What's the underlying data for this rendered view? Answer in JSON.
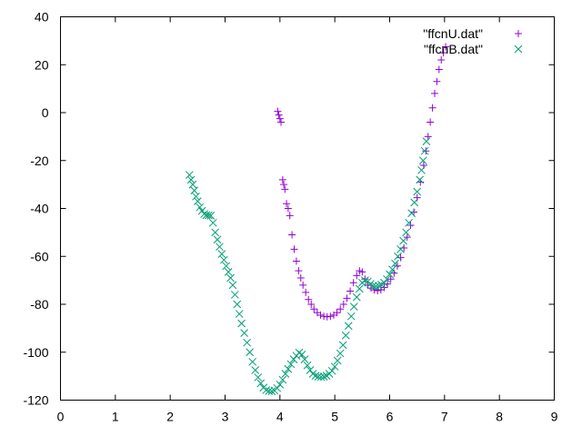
{
  "chart_data": {
    "type": "scatter",
    "title": "",
    "xlabel": "",
    "ylabel": "",
    "xlim": [
      0,
      9
    ],
    "ylim": [
      -120,
      40
    ],
    "xticks": [
      "0",
      "1",
      "2",
      "3",
      "4",
      "5",
      "6",
      "7",
      "8",
      "9"
    ],
    "yticks": [
      "40",
      "20",
      "0",
      "-20",
      "-40",
      "-60",
      "-80",
      "-100",
      "-120"
    ],
    "grid": false,
    "legend_position": "top-right",
    "series": [
      {
        "name": "\"ffcnU.dat\"",
        "marker": "plus",
        "color": "#9400d3",
        "points": [
          [
            3.96,
            0.5
          ],
          [
            3.98,
            -1
          ],
          [
            4.0,
            -2.5
          ],
          [
            4.02,
            -4
          ],
          [
            4.05,
            -28
          ],
          [
            4.07,
            -30
          ],
          [
            4.09,
            -32
          ],
          [
            4.12,
            -38
          ],
          [
            4.15,
            -40
          ],
          [
            4.18,
            -43
          ],
          [
            4.22,
            -51
          ],
          [
            4.26,
            -57
          ],
          [
            4.3,
            -62
          ],
          [
            4.34,
            -66
          ],
          [
            4.38,
            -69
          ],
          [
            4.42,
            -72
          ],
          [
            4.47,
            -75
          ],
          [
            4.52,
            -78
          ],
          [
            4.57,
            -80
          ],
          [
            4.62,
            -82
          ],
          [
            4.68,
            -83.5
          ],
          [
            4.74,
            -84.5
          ],
          [
            4.8,
            -85
          ],
          [
            4.86,
            -85.2
          ],
          [
            4.92,
            -85
          ],
          [
            4.98,
            -84.5
          ],
          [
            5.04,
            -83.5
          ],
          [
            5.1,
            -82
          ],
          [
            5.16,
            -80
          ],
          [
            5.22,
            -77.5
          ],
          [
            5.28,
            -74.5
          ],
          [
            5.34,
            -71
          ],
          [
            5.4,
            -68
          ],
          [
            5.45,
            -66
          ],
          [
            5.5,
            -66.5
          ],
          [
            5.55,
            -69.5
          ],
          [
            5.6,
            -72
          ],
          [
            5.66,
            -73.2
          ],
          [
            5.72,
            -74
          ],
          [
            5.78,
            -74.3
          ],
          [
            5.84,
            -74
          ],
          [
            5.9,
            -73
          ],
          [
            5.96,
            -71.5
          ],
          [
            6.02,
            -69.5
          ],
          [
            6.08,
            -67
          ],
          [
            6.14,
            -64
          ],
          [
            6.2,
            -60.5
          ],
          [
            6.26,
            -56.5
          ],
          [
            6.32,
            -52
          ],
          [
            6.38,
            -47
          ],
          [
            6.44,
            -41.5
          ],
          [
            6.5,
            -35.5
          ],
          [
            6.56,
            -29
          ],
          [
            6.62,
            -22
          ],
          [
            6.66,
            -16
          ],
          [
            6.7,
            -10
          ],
          [
            6.74,
            -4
          ],
          [
            6.78,
            2
          ],
          [
            6.82,
            8
          ],
          [
            6.86,
            13
          ],
          [
            6.9,
            18
          ],
          [
            6.94,
            22
          ],
          [
            6.98,
            25
          ],
          [
            7.02,
            27.5
          ]
        ]
      },
      {
        "name": "\"ffcnB.dat\"",
        "marker": "cross",
        "color": "#009e73",
        "points": [
          [
            2.35,
            -26
          ],
          [
            2.38,
            -28
          ],
          [
            2.41,
            -30
          ],
          [
            2.44,
            -32.5
          ],
          [
            2.47,
            -35
          ],
          [
            2.5,
            -37
          ],
          [
            2.54,
            -39.5
          ],
          [
            2.58,
            -41
          ],
          [
            2.62,
            -42.3
          ],
          [
            2.66,
            -42.8
          ],
          [
            2.7,
            -42.9
          ],
          [
            2.74,
            -43
          ],
          [
            2.78,
            -46
          ],
          [
            2.82,
            -50
          ],
          [
            2.86,
            -53
          ],
          [
            2.9,
            -56
          ],
          [
            2.94,
            -59
          ],
          [
            2.98,
            -61.5
          ],
          [
            3.02,
            -64
          ],
          [
            3.06,
            -66.5
          ],
          [
            3.1,
            -69
          ],
          [
            3.14,
            -72
          ],
          [
            3.18,
            -76
          ],
          [
            3.22,
            -80
          ],
          [
            3.26,
            -84
          ],
          [
            3.3,
            -88
          ],
          [
            3.35,
            -92
          ],
          [
            3.4,
            -96
          ],
          [
            3.45,
            -100
          ],
          [
            3.5,
            -104
          ],
          [
            3.55,
            -107.5
          ],
          [
            3.6,
            -110.5
          ],
          [
            3.65,
            -113
          ],
          [
            3.7,
            -114.8
          ],
          [
            3.75,
            -115.8
          ],
          [
            3.8,
            -116.2
          ],
          [
            3.85,
            -116.3
          ],
          [
            3.9,
            -116
          ],
          [
            3.95,
            -115
          ],
          [
            4.0,
            -113.5
          ],
          [
            4.05,
            -111.5
          ],
          [
            4.1,
            -109
          ],
          [
            4.15,
            -107
          ],
          [
            4.2,
            -105
          ],
          [
            4.25,
            -103
          ],
          [
            4.3,
            -101.5
          ],
          [
            4.35,
            -100.2
          ],
          [
            4.4,
            -101
          ],
          [
            4.45,
            -103
          ],
          [
            4.5,
            -105.5
          ],
          [
            4.55,
            -107.5
          ],
          [
            4.6,
            -109
          ],
          [
            4.65,
            -109.8
          ],
          [
            4.7,
            -110.2
          ],
          [
            4.75,
            -110.3
          ],
          [
            4.8,
            -110.2
          ],
          [
            4.85,
            -109.8
          ],
          [
            4.9,
            -109
          ],
          [
            4.95,
            -107.8
          ],
          [
            5.0,
            -106
          ],
          [
            5.05,
            -103.5
          ],
          [
            5.1,
            -100.5
          ],
          [
            5.15,
            -97
          ],
          [
            5.2,
            -93
          ],
          [
            5.25,
            -89
          ],
          [
            5.3,
            -85
          ],
          [
            5.35,
            -81
          ],
          [
            5.4,
            -77
          ],
          [
            5.45,
            -73.5
          ],
          [
            5.5,
            -71
          ],
          [
            5.55,
            -70
          ],
          [
            5.6,
            -70.5
          ],
          [
            5.65,
            -71.5
          ],
          [
            5.7,
            -72.3
          ],
          [
            5.75,
            -72.5
          ],
          [
            5.8,
            -72.3
          ],
          [
            5.85,
            -71.8
          ],
          [
            5.9,
            -71
          ],
          [
            5.95,
            -69.5
          ],
          [
            6.0,
            -67.5
          ],
          [
            6.05,
            -65.5
          ],
          [
            6.1,
            -63
          ],
          [
            6.15,
            -60
          ],
          [
            6.2,
            -57
          ],
          [
            6.25,
            -53.5
          ],
          [
            6.3,
            -50
          ],
          [
            6.35,
            -46
          ],
          [
            6.4,
            -42
          ],
          [
            6.45,
            -37.5
          ],
          [
            6.5,
            -33
          ],
          [
            6.55,
            -28
          ],
          [
            6.58,
            -24
          ],
          [
            6.61,
            -20
          ],
          [
            6.64,
            -16
          ],
          [
            6.67,
            -12
          ]
        ]
      }
    ]
  }
}
